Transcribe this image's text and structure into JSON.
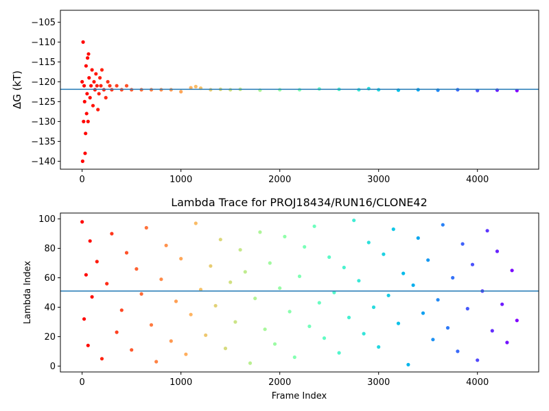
{
  "chart_data": [
    {
      "type": "scatter",
      "title": "",
      "xlabel": "",
      "ylabel": "ΔG (kT)",
      "xlim": [
        -220,
        4620
      ],
      "ylim": [
        -142,
        -102
      ],
      "xticks": [
        0,
        1000,
        2000,
        3000,
        4000
      ],
      "yticks": [
        -140,
        -135,
        -130,
        -125,
        -120,
        -115,
        -110,
        -105
      ],
      "reference_line": {
        "y": -121.9,
        "color": "#1f77b4"
      },
      "colormap": "rainbow (reversed, red at frame 0 → violet at frame 4400)",
      "grid": false,
      "legend": "none",
      "series": [
        {
          "x": [
            0,
            5,
            10,
            15,
            20,
            25,
            30,
            35,
            40,
            45,
            50,
            55,
            60,
            65,
            70,
            80,
            90,
            100,
            110,
            120,
            130,
            140,
            150,
            160,
            170,
            180,
            190,
            200,
            220,
            240,
            260,
            280,
            300,
            350,
            400,
            450,
            500,
            600,
            700,
            800,
            900,
            1000,
            1100,
            1150,
            1200,
            1300,
            1400,
            1500,
            1600,
            1800,
            2000,
            2200,
            2400,
            2600,
            2800,
            2900,
            3000,
            3200,
            3400,
            3600,
            3800,
            4000,
            4200,
            4400
          ],
          "y": [
            -120,
            -140,
            -110,
            -130,
            -121,
            -125,
            -138,
            -133,
            -116,
            -128,
            -123,
            -114,
            -130,
            -113,
            -119,
            -124,
            -121,
            -117,
            -126,
            -120,
            -122,
            -118,
            -121,
            -127,
            -123,
            -119,
            -121,
            -117,
            -122,
            -124,
            -120,
            -121,
            -122,
            -121,
            -122,
            -121,
            -122,
            -122,
            -122,
            -122,
            -122,
            -122.5,
            -121.5,
            -121.2,
            -121.6,
            -122,
            -121.9,
            -122,
            -121.9,
            -122.1,
            -122,
            -122,
            -121.8,
            -121.9,
            -122,
            -121.7,
            -122,
            -122.1,
            -122,
            -122.1,
            -122,
            -122.2,
            -122.1,
            -122.2
          ]
        }
      ]
    },
    {
      "type": "scatter",
      "title": "Lambda Trace for PROJ18434/RUN16/CLONE42",
      "xlabel": "Frame Index",
      "ylabel": "Lambda Index",
      "xlim": [
        -220,
        4620
      ],
      "ylim": [
        -4,
        104
      ],
      "xticks": [
        0,
        1000,
        2000,
        3000,
        4000
      ],
      "yticks": [
        0,
        20,
        40,
        60,
        80,
        100
      ],
      "reference_line": {
        "y": 51,
        "color": "#1f77b4"
      },
      "colormap": "rainbow (reversed, red at frame 0 → violet at frame 4400)",
      "grid": false,
      "legend": "none",
      "series": [
        {
          "description_of_distribution": "uniformly spread lambda indices 0-99 across frames 0-4400",
          "x": [
            0,
            20,
            40,
            60,
            80,
            100,
            150,
            200,
            250,
            300,
            350,
            400,
            450,
            500,
            550,
            600,
            650,
            700,
            750,
            800,
            850,
            900,
            950,
            1000,
            1050,
            1100,
            1150,
            1200,
            1250,
            1300,
            1350,
            1400,
            1450,
            1500,
            1550,
            1600,
            1650,
            1700,
            1750,
            1800,
            1850,
            1900,
            1950,
            2000,
            2050,
            2100,
            2150,
            2200,
            2250,
            2300,
            2350,
            2400,
            2450,
            2500,
            2550,
            2600,
            2650,
            2700,
            2750,
            2800,
            2850,
            2900,
            2950,
            3000,
            3050,
            3100,
            3150,
            3200,
            3250,
            3300,
            3350,
            3400,
            3450,
            3500,
            3550,
            3600,
            3650,
            3700,
            3750,
            3800,
            3850,
            3900,
            3950,
            4000,
            4050,
            4100,
            4150,
            4200,
            4250,
            4300,
            4350,
            4400
          ],
          "y": [
            98,
            32,
            62,
            14,
            85,
            47,
            71,
            5,
            56,
            90,
            23,
            38,
            77,
            11,
            66,
            49,
            94,
            28,
            3,
            59,
            82,
            17,
            44,
            73,
            8,
            35,
            97,
            52,
            21,
            68,
            41,
            86,
            12,
            57,
            30,
            79,
            64,
            2,
            46,
            91,
            25,
            70,
            15,
            53,
            88,
            37,
            6,
            61,
            81,
            27,
            95,
            43,
            19,
            74,
            50,
            9,
            67,
            33,
            99,
            58,
            22,
            84,
            40,
            13,
            76,
            48,
            93,
            29,
            63,
            1,
            55,
            87,
            36,
            72,
            18,
            45,
            96,
            26,
            60,
            10,
            83,
            39,
            69,
            4,
            51,
            92,
            24,
            78,
            42,
            16,
            65,
            31
          ]
        }
      ]
    }
  ]
}
